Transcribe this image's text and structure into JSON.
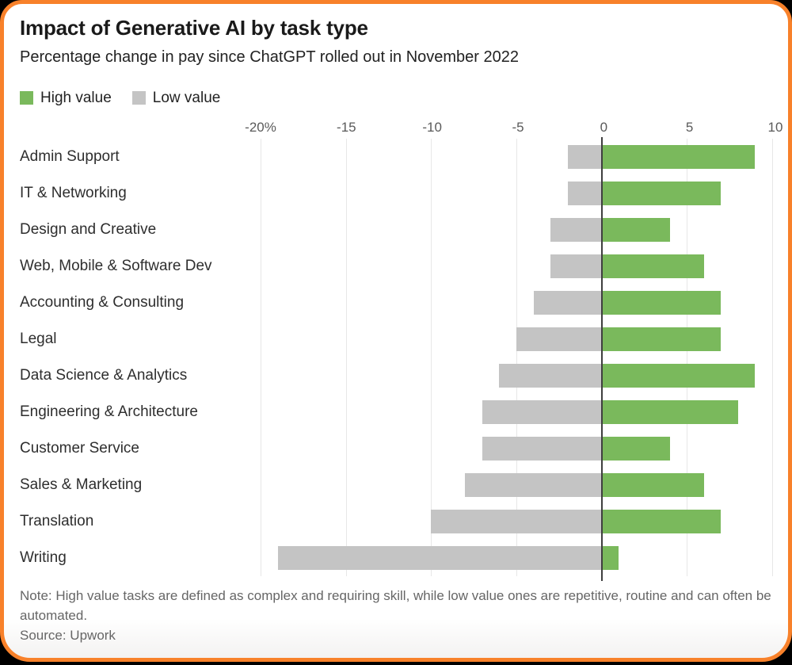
{
  "header": {
    "title": "Impact of Generative AI by task type",
    "subtitle": "Percentage change in pay since ChatGPT rolled out in November 2022"
  },
  "legend": {
    "items": [
      {
        "label": "High value",
        "color": "#7ab95c"
      },
      {
        "label": "Low value",
        "color": "#c4c4c4"
      }
    ]
  },
  "chart_data": {
    "type": "bar",
    "orientation": "horizontal",
    "title": "Impact of Generative AI by task type",
    "subtitle": "Percentage change in pay since ChatGPT rolled out in November 2022",
    "xlim": [
      -20,
      10
    ],
    "xticks": [
      {
        "value": -20,
        "label": "-20%"
      },
      {
        "value": -15,
        "label": "-15"
      },
      {
        "value": -10,
        "label": "-10"
      },
      {
        "value": -5,
        "label": "-5"
      },
      {
        "value": 0,
        "label": "0"
      },
      {
        "value": 5,
        "label": "5"
      },
      {
        "value": 10,
        "label": "10"
      }
    ],
    "categories": [
      "Admin Support",
      "IT & Networking",
      "Design and Creative",
      "Web, Mobile & Software Dev",
      "Accounting & Consulting",
      "Legal",
      "Data Science & Analytics",
      "Engineering & Architecture",
      "Customer Service",
      "Sales & Marketing",
      "Translation",
      "Writing"
    ],
    "series": [
      {
        "name": "High value",
        "color": "#7ab95c",
        "values": [
          9,
          7,
          4,
          6,
          7,
          7,
          9,
          8,
          4,
          6,
          7,
          1
        ]
      },
      {
        "name": "Low value",
        "color": "#c4c4c4",
        "values": [
          -2,
          -2,
          -3,
          -3,
          -4,
          -5,
          -6,
          -7,
          -7,
          -8,
          -10,
          -19
        ]
      }
    ],
    "grid": "vertical",
    "zero_line": true,
    "legend_position": "top-left"
  },
  "footer": {
    "note": "Note: High value tasks are defined as complex and requiring skill, while low value ones are repetitive, routine and can often be automated.",
    "source": "Source: Upwork"
  },
  "colors": {
    "high_value": "#7ab95c",
    "low_value": "#c4c4c4",
    "card_border": "#f8812a",
    "zero_line": "#3f3f3f",
    "gridline": "#e7e7e7"
  }
}
